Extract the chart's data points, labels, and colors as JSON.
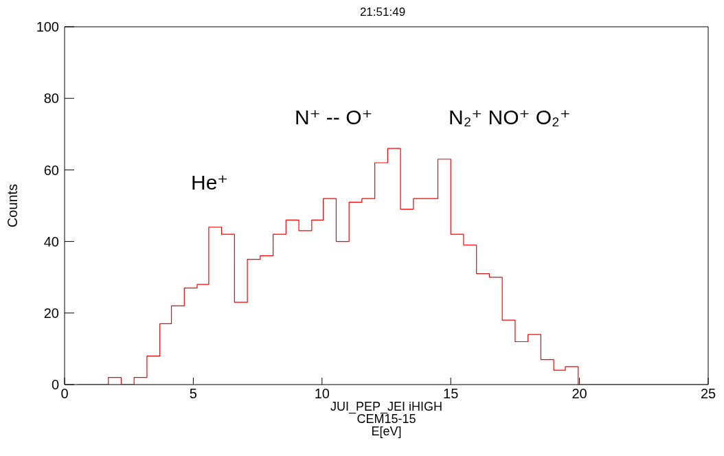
{
  "chart_data": {
    "type": "histogram",
    "title": "21:51:49",
    "xlabel": "JUI_PEP_JEI iHIGH\nCEM15-15\nE[eV]",
    "ylabel": "Counts",
    "bins": [
      0.5,
      1.7,
      2.2,
      2.7,
      3.2,
      3.7,
      4.15,
      4.65,
      5.15,
      5.6,
      6.1,
      6.6,
      7.1,
      7.6,
      8.1,
      8.6,
      9.1,
      9.6,
      10.05,
      10.55,
      11.05,
      11.55,
      12.05,
      12.55,
      13.05,
      13.55,
      14.0,
      14.5,
      15.0,
      15.5,
      16.0,
      16.5,
      17.0,
      17.5,
      18.0,
      18.5,
      19.0,
      19.45,
      19.95,
      25
    ],
    "values": [
      0,
      2,
      0,
      2,
      8,
      17,
      22,
      27,
      28,
      44,
      42,
      23,
      35,
      36,
      42,
      46,
      43,
      46,
      52,
      40,
      51,
      52,
      62,
      66,
      49,
      52,
      52,
      63,
      42,
      39,
      31,
      30,
      18,
      12,
      14,
      7,
      4,
      5,
      0
    ],
    "color": "#ff0000",
    "xlim": [
      0,
      25
    ],
    "ylim": [
      0,
      100
    ],
    "xticks": [
      0,
      5,
      10,
      15,
      20,
      25
    ],
    "yticks": [
      0,
      20,
      40,
      60,
      80,
      100
    ],
    "grid": false,
    "legend": false,
    "annotations": [
      "He⁺",
      "N⁺ -- O⁺",
      "N₂⁺ NO⁺ O₂⁺"
    ]
  }
}
